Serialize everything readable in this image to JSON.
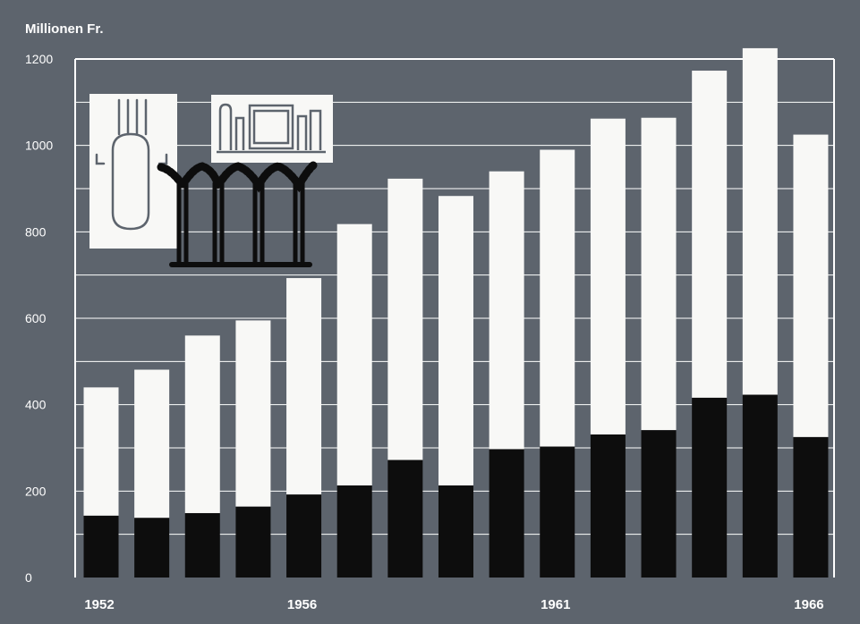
{
  "chart_data": {
    "type": "bar",
    "stacked": true,
    "ylabel": "Millionen Fr.",
    "ylim": [
      0,
      1200
    ],
    "yticks": [
      0,
      200,
      400,
      600,
      800,
      1000,
      1200
    ],
    "categories": [
      "1952",
      "1953",
      "1954",
      "1955",
      "1956",
      "1957",
      "1958",
      "1959",
      "1960",
      "1961",
      "1962",
      "1963",
      "1964",
      "1965",
      "1966"
    ],
    "x_tick_labels": [
      "1952",
      "1956",
      "1961",
      "1966"
    ],
    "x_tick_label_categories": [
      "1952",
      "1956",
      "1961",
      "1966"
    ],
    "grid": true,
    "legend": "none",
    "colors": {
      "background": "#5d646d",
      "lower": "#0d0d0d",
      "upper": "#f8f8f6",
      "grid": "#ffffff"
    },
    "series": [
      {
        "values": [
          143,
          138,
          149,
          164,
          192,
          213,
          272,
          213,
          297,
          303,
          331,
          341,
          416,
          423,
          325
        ]
      },
      {
        "values": [
          297,
          343,
          411,
          431,
          501,
          605,
          651,
          670,
          643,
          687,
          731,
          723,
          757,
          802,
          700
        ]
      }
    ],
    "totals": [
      440,
      481,
      560,
      595,
      693,
      818,
      923,
      883,
      940,
      990,
      1062,
      1064,
      1173,
      1225,
      1025
    ]
  }
}
